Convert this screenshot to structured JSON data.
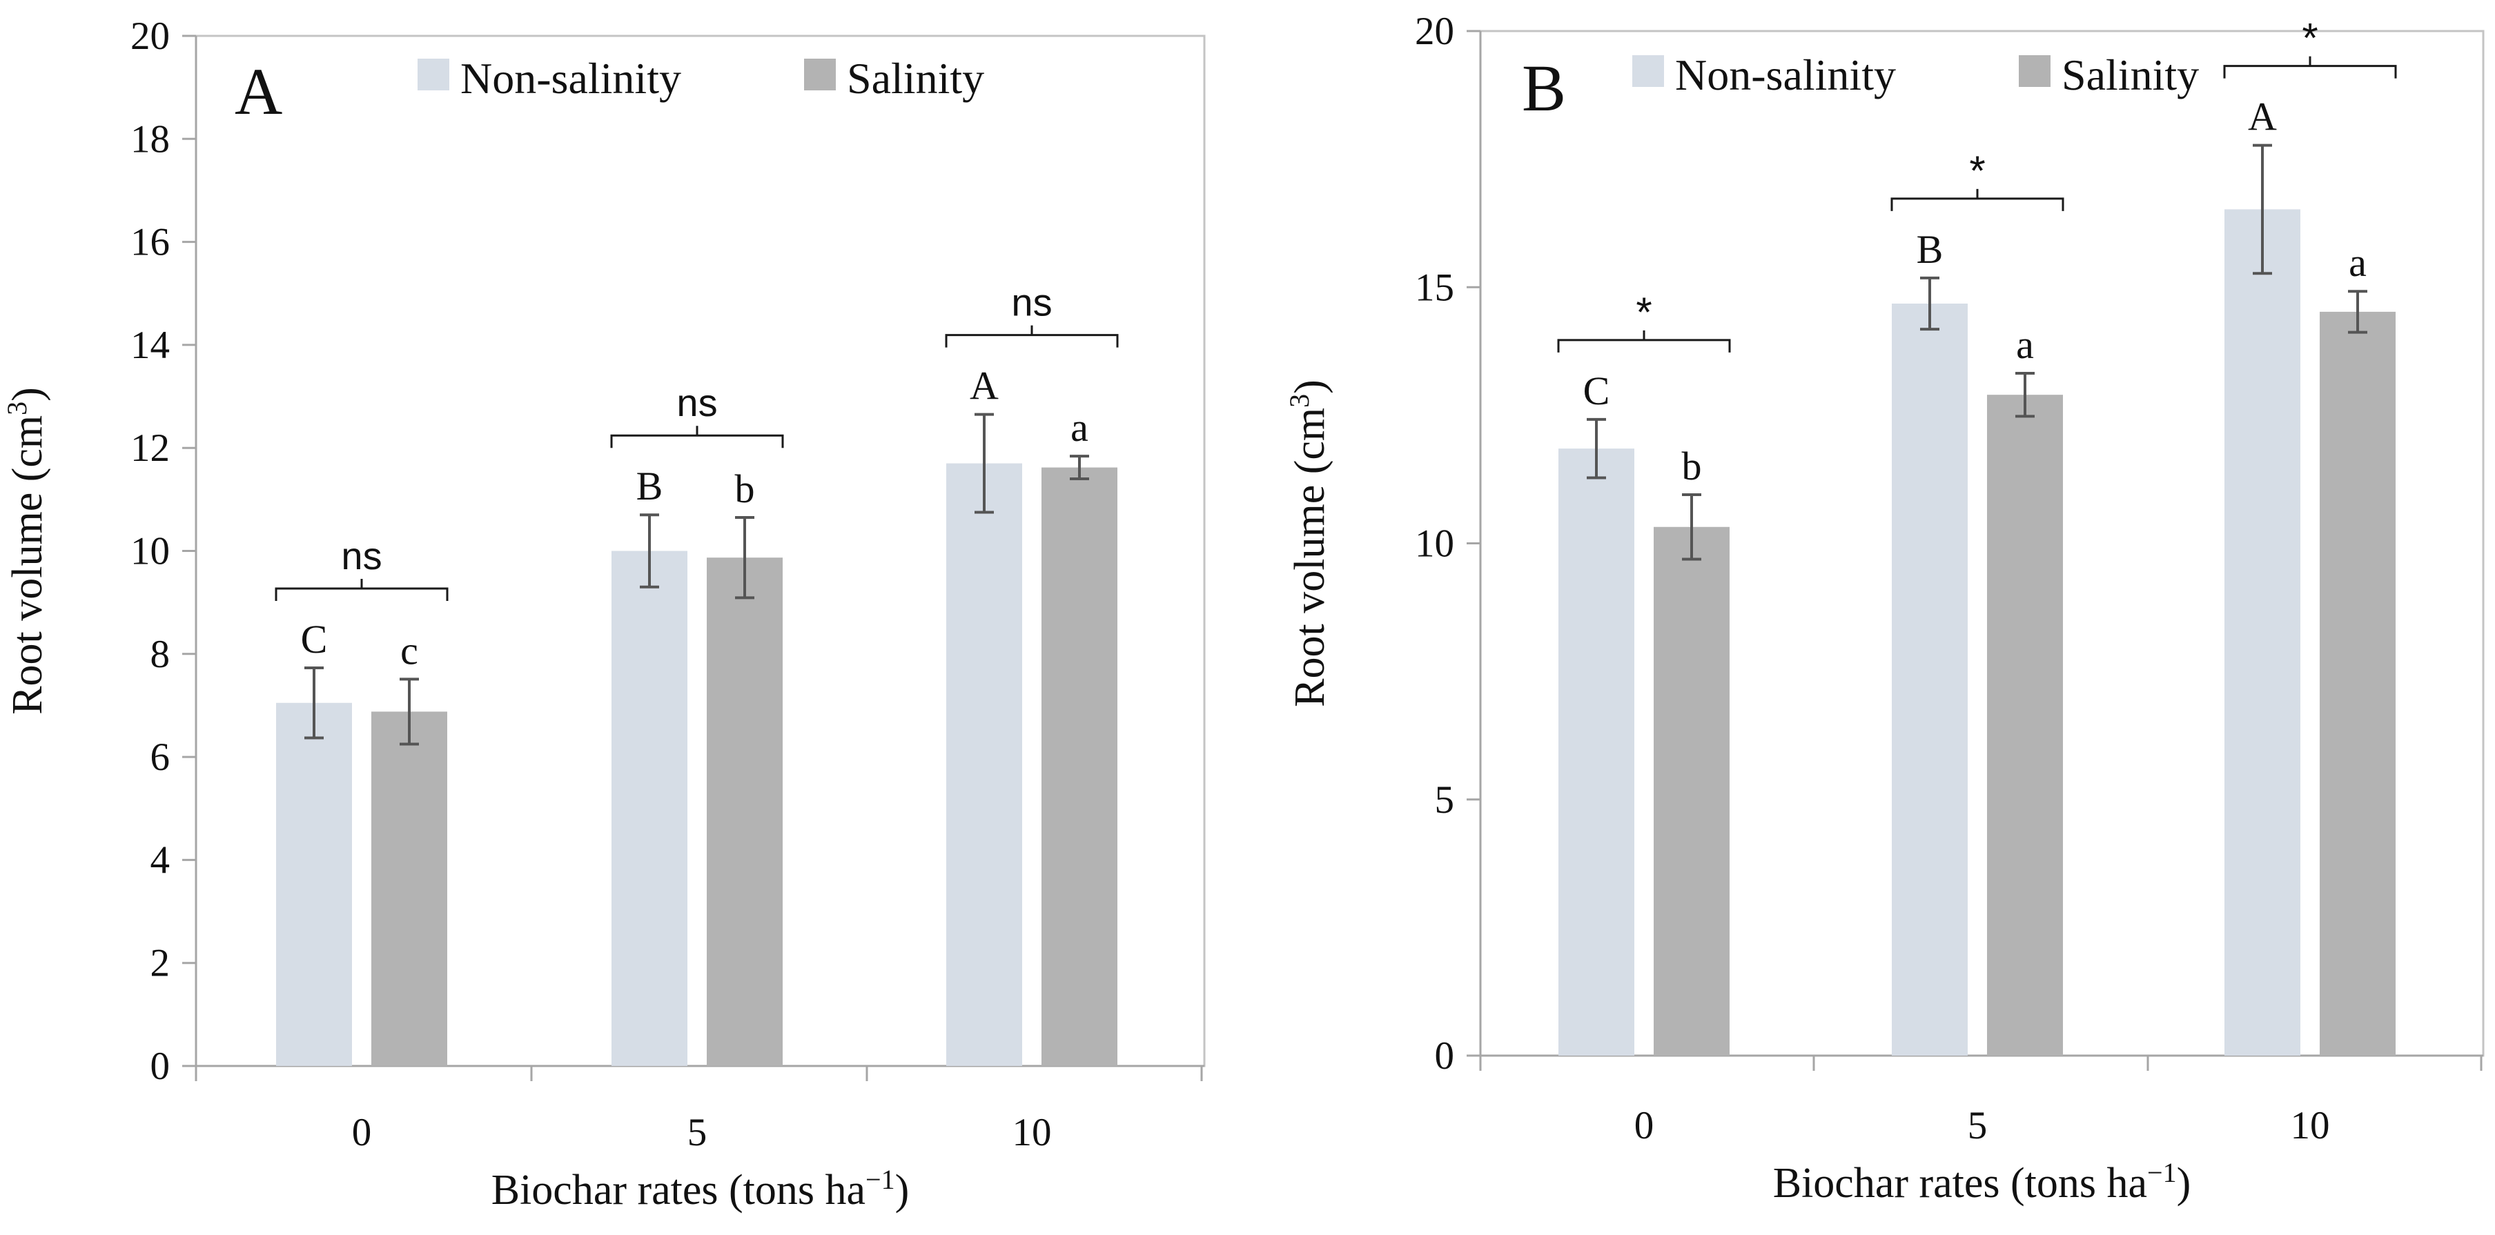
{
  "colors": {
    "non_salinity": "#d6dde6",
    "salinity": "#b3b3b3",
    "error_bar": "#555555",
    "frame": "#c4c4c4",
    "axis": "#a6a6a6",
    "bracket": "#1a1a1a"
  },
  "chart_data": [
    {
      "type": "bar",
      "panel_label": "A",
      "categories": [
        "0",
        "5",
        "10"
      ],
      "xlabel": "Biochar rates (tons ha",
      "xlabel_sup": "−1",
      "xlabel_end": ")",
      "ylabel": "Root volume (cm",
      "ylabel_sup": "3",
      "ylabel_end": ")",
      "ylim": [
        0,
        20
      ],
      "yticks": [
        "0",
        "2",
        "4",
        "6",
        "8",
        "10",
        "12",
        "14",
        "16",
        "18",
        "20"
      ],
      "series": [
        {
          "name": "Non-salinity",
          "values": [
            7.05,
            10.0,
            11.7
          ],
          "errors": [
            0.68,
            0.7,
            0.95
          ],
          "letters": [
            "C",
            "B",
            "A"
          ]
        },
        {
          "name": "Salinity",
          "values": [
            6.88,
            9.87,
            11.62
          ],
          "errors": [
            0.63,
            0.78,
            0.22
          ],
          "letters": [
            "c",
            "b",
            "a"
          ]
        }
      ],
      "significance": [
        "ns",
        "ns",
        "ns"
      ],
      "legend": "top-right, inside plot",
      "grid": false
    },
    {
      "type": "bar",
      "panel_label": "B",
      "categories": [
        "0",
        "5",
        "10"
      ],
      "xlabel": "Biochar rates (tons ha",
      "xlabel_sup": "−1",
      "xlabel_end": ")",
      "ylabel": "Root volume (cm",
      "ylabel_sup": "3",
      "ylabel_end": ")",
      "ylim": [
        0,
        20
      ],
      "yticks": [
        "0",
        "5",
        "10",
        "15",
        "20"
      ],
      "series": [
        {
          "name": "Non-salinity",
          "values": [
            11.85,
            14.68,
            16.52
          ],
          "errors": [
            0.57,
            0.5,
            1.25
          ],
          "letters": [
            "C",
            "B",
            "A"
          ]
        },
        {
          "name": "Salinity",
          "values": [
            10.32,
            12.9,
            14.52
          ],
          "errors": [
            0.63,
            0.42,
            0.4
          ],
          "letters": [
            "b",
            "a",
            "a"
          ]
        }
      ],
      "significance": [
        "*",
        "*",
        "*"
      ],
      "legend": "top-right, inside plot",
      "grid": false
    }
  ]
}
